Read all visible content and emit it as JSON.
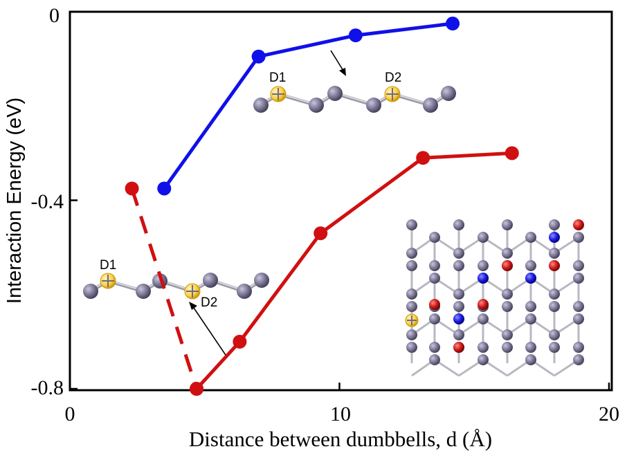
{
  "chart_data": {
    "type": "line",
    "xlabel": "Distance between dumbbells, d (Å)",
    "ylabel": "Interaction Energy (eV)",
    "xlim": [
      0,
      20
    ],
    "ylim": [
      -0.8,
      0
    ],
    "x_ticks": [
      0,
      10,
      20
    ],
    "y_ticks": [
      0,
      -0.4,
      -0.8
    ],
    "x_tick_labels": [
      "0",
      "10",
      "20"
    ],
    "y_tick_labels": [
      "0",
      "-0.4",
      "-0.8"
    ],
    "grid": false,
    "series": [
      {
        "color": "#1010e8",
        "line_style": "solid",
        "x": [
          3.5,
          7.0,
          10.6,
          14.2
        ],
        "y": [
          -0.375,
          -0.095,
          -0.05,
          -0.025
        ]
      },
      {
        "color": "#d01010",
        "line_style": "dashed",
        "x": [
          2.3,
          4.7
        ],
        "y": [
          -0.375,
          -0.8
        ]
      },
      {
        "color": "#d01010",
        "line_style": "solid",
        "x": [
          4.7,
          6.3,
          9.3,
          13.1,
          16.4
        ],
        "y": [
          -0.8,
          -0.7,
          -0.47,
          -0.31,
          -0.3
        ]
      }
    ],
    "annotations": {
      "top_inset": {
        "label_1": "D1",
        "label_2": "D2"
      },
      "left_inset": {
        "label_1": "D1",
        "label_2": "D2"
      }
    }
  },
  "colors": {
    "blue_series": "#1010e8",
    "red_series": "#d01010",
    "carbon_atom": "#6e6a88",
    "dopant_atom": "#ffd24d",
    "blue_atom": "#1a1ae0",
    "red_atom": "#c8151a"
  }
}
